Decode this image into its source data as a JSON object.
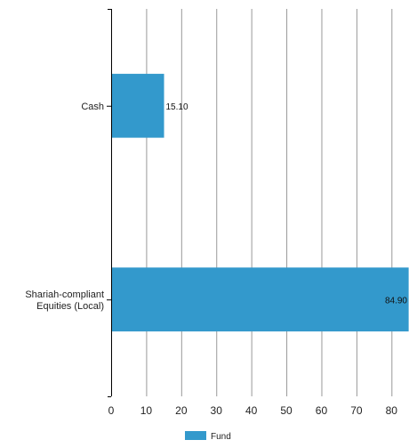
{
  "chart_data": {
    "type": "bar",
    "orientation": "horizontal",
    "categories": [
      "Cash",
      "Shariah-compliant Equities (Local)"
    ],
    "category_lines": [
      [
        "Cash"
      ],
      [
        "Shariah-compliant",
        "Equities (Local)"
      ]
    ],
    "series": [
      {
        "name": "Fund",
        "values": [
          15.1,
          84.9
        ],
        "value_labels": [
          "15.10",
          "84.90"
        ],
        "color": "#3399cc"
      }
    ],
    "xlim": [
      0,
      85
    ],
    "xticks": [
      0,
      10,
      20,
      30,
      40,
      50,
      60,
      70,
      80
    ],
    "grid": true,
    "legend": "bottom-center",
    "title": "",
    "xlabel": "",
    "ylabel": ""
  }
}
